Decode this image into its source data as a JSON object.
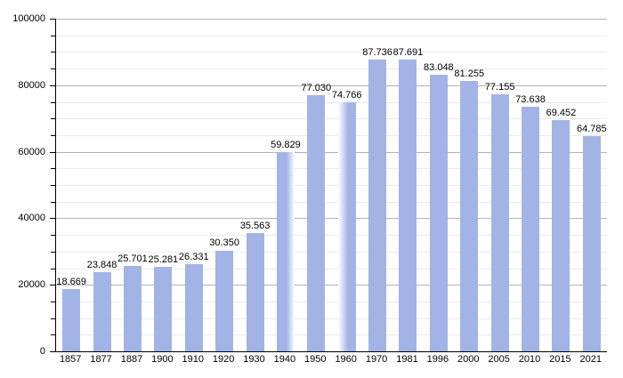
{
  "chart_data": {
    "type": "bar",
    "title": "",
    "xlabel": "",
    "ylabel": "",
    "categories": [
      "1857",
      "1877",
      "1887",
      "1900",
      "1910",
      "1920",
      "1930",
      "1940",
      "1950",
      "1960",
      "1970",
      "1981",
      "1996",
      "2000",
      "2005",
      "2010",
      "2015",
      "2021"
    ],
    "values": [
      18669,
      23848,
      25701,
      25281,
      26331,
      30350,
      35563,
      59829,
      77030,
      74766,
      87736,
      87691,
      83048,
      81255,
      77155,
      73638,
      69452,
      64785
    ],
    "value_labels": [
      "18.669",
      "23.848",
      "25.701",
      "25.281",
      "26.331",
      "30.350",
      "35.563",
      "59.829",
      "77.030",
      "74.766",
      "87.736",
      "87.691",
      "83.048",
      "81.255",
      "77.155",
      "73.638",
      "69.452",
      "64.785"
    ],
    "bar_fades": [
      "none",
      "none",
      "none",
      "none",
      "none",
      "none",
      "none",
      "right",
      "none",
      "left",
      "none",
      "none",
      "none",
      "none",
      "none",
      "none",
      "none",
      "none"
    ],
    "ylim": [
      0,
      100000
    ],
    "y_major_step": 20000,
    "y_minor_step": 5000,
    "y_tick_labels": [
      "0",
      "20000",
      "40000",
      "60000",
      "80000",
      "100000"
    ],
    "grid": true,
    "legend": "none",
    "colors": {
      "bar": "#a2b4e5",
      "major_grid": "#b3b3b3",
      "minor_grid": "#ebebeb",
      "axis": "#000000",
      "text": "#000000",
      "background": "#ffffff"
    }
  }
}
